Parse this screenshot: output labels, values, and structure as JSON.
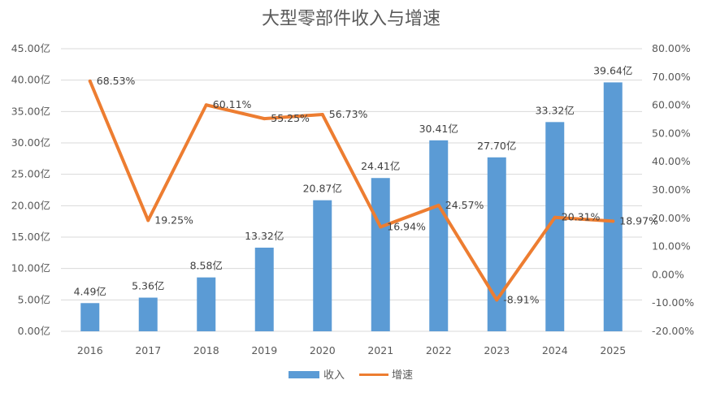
{
  "chart_data": {
    "type": "bar",
    "title": "大型零部件收入与增速",
    "categories": [
      "2016",
      "2017",
      "2018",
      "2019",
      "2020",
      "2021",
      "2022",
      "2023",
      "2024",
      "2025"
    ],
    "series": [
      {
        "name": "收入",
        "type": "bar",
        "axis": "left",
        "color": "#5B9BD5",
        "values": [
          4.49,
          5.36,
          8.58,
          13.32,
          20.87,
          24.41,
          30.41,
          27.7,
          33.32,
          39.64
        ],
        "labels": [
          "4.49亿",
          "5.36亿",
          "8.58亿",
          "13.32亿",
          "20.87亿",
          "24.41亿",
          "30.41亿",
          "27.70亿",
          "33.32亿",
          "39.64亿"
        ]
      },
      {
        "name": "增速",
        "type": "line",
        "axis": "right",
        "color": "#ED7D31",
        "values": [
          68.53,
          19.25,
          60.11,
          55.25,
          56.73,
          16.94,
          24.57,
          -8.91,
          20.31,
          18.97
        ],
        "labels": [
          "68.53%",
          "19.25%",
          "60.11%",
          "55.25%",
          "56.73%",
          "16.94%",
          "24.57%",
          "-8.91%",
          "20.31%",
          "18.97%"
        ]
      }
    ],
    "y_left": {
      "min": 0,
      "max": 45,
      "step": 5,
      "ticks": [
        "0.00亿",
        "5.00亿",
        "10.00亿",
        "15.00亿",
        "20.00亿",
        "25.00亿",
        "30.00亿",
        "35.00亿",
        "40.00亿",
        "45.00亿"
      ]
    },
    "y_right": {
      "min": -20,
      "max": 80,
      "step": 10,
      "ticks": [
        "-20.00%",
        "-10.00%",
        "0.00%",
        "10.00%",
        "20.00%",
        "30.00%",
        "40.00%",
        "50.00%",
        "60.00%",
        "70.00%",
        "80.00%"
      ]
    },
    "legend": {
      "position": "bottom",
      "items": [
        "收入",
        "增速"
      ]
    },
    "grid": true
  }
}
